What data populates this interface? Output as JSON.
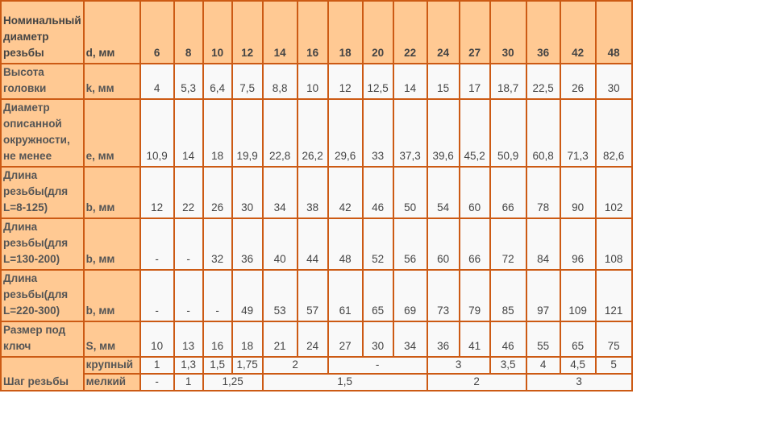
{
  "colors": {
    "header_bg": "#ffc993",
    "border": "#cc5a14",
    "cell_bg": "#f9f9f9"
  },
  "header": {
    "label": "Номинальный диаметр резьбы",
    "unit": "d, мм",
    "values": [
      "6",
      "8",
      "10",
      "12",
      "14",
      "16",
      "18",
      "20",
      "22",
      "24",
      "27",
      "30",
      "36",
      "42",
      "48"
    ]
  },
  "rows": [
    {
      "label": "Высота головки",
      "unit": "k, мм",
      "cells": [
        {
          "t": "4"
        },
        {
          "t": "5,3"
        },
        {
          "t": "6,4"
        },
        {
          "t": "7,5"
        },
        {
          "t": "8,8"
        },
        {
          "t": "10"
        },
        {
          "t": "12"
        },
        {
          "t": "12,5"
        },
        {
          "t": "14"
        },
        {
          "t": "15"
        },
        {
          "t": "17"
        },
        {
          "t": "18,7"
        },
        {
          "t": "22,5"
        },
        {
          "t": "26"
        },
        {
          "t": "30"
        }
      ]
    },
    {
      "label": "Диаметр описанной окружности, не менее",
      "unit": "e, мм",
      "cells": [
        {
          "t": "10,9"
        },
        {
          "t": "14"
        },
        {
          "t": "18"
        },
        {
          "t": "19,9"
        },
        {
          "t": "22,8"
        },
        {
          "t": "26,2"
        },
        {
          "t": "29,6"
        },
        {
          "t": "33"
        },
        {
          "t": "37,3"
        },
        {
          "t": "39,6"
        },
        {
          "t": "45,2"
        },
        {
          "t": "50,9"
        },
        {
          "t": "60,8"
        },
        {
          "t": "71,3"
        },
        {
          "t": "82,6"
        }
      ]
    },
    {
      "label": "Длина резьбы(для L=8-125)",
      "unit": "b, мм",
      "cells": [
        {
          "t": "12"
        },
        {
          "t": "22"
        },
        {
          "t": "26"
        },
        {
          "t": "30"
        },
        {
          "t": "34"
        },
        {
          "t": "38"
        },
        {
          "t": "42"
        },
        {
          "t": "46"
        },
        {
          "t": "50"
        },
        {
          "t": "54"
        },
        {
          "t": "60"
        },
        {
          "t": "66"
        },
        {
          "t": "78"
        },
        {
          "t": "90"
        },
        {
          "t": "102"
        }
      ]
    },
    {
      "label": "Длина резьбы(для L=130-200)",
      "unit": "b, мм",
      "cells": [
        {
          "t": "-"
        },
        {
          "t": "-"
        },
        {
          "t": "32"
        },
        {
          "t": "36"
        },
        {
          "t": "40"
        },
        {
          "t": "44"
        },
        {
          "t": "48"
        },
        {
          "t": "52"
        },
        {
          "t": "56"
        },
        {
          "t": "60"
        },
        {
          "t": "66"
        },
        {
          "t": "72"
        },
        {
          "t": "84"
        },
        {
          "t": "96"
        },
        {
          "t": "108"
        }
      ]
    },
    {
      "label": "Длина резьбы(для L=220-300)",
      "unit": "b, мм",
      "cells": [
        {
          "t": "-"
        },
        {
          "t": "-"
        },
        {
          "t": "-"
        },
        {
          "t": "49"
        },
        {
          "t": "53"
        },
        {
          "t": "57"
        },
        {
          "t": "61"
        },
        {
          "t": "65"
        },
        {
          "t": "69"
        },
        {
          "t": "73"
        },
        {
          "t": "79"
        },
        {
          "t": "85"
        },
        {
          "t": "97"
        },
        {
          "t": "109"
        },
        {
          "t": "121"
        }
      ]
    },
    {
      "label": "Размер под ключ",
      "unit": "S, мм",
      "cells": [
        {
          "t": "10"
        },
        {
          "t": "13"
        },
        {
          "t": "16"
        },
        {
          "t": "18"
        },
        {
          "t": "21"
        },
        {
          "t": "24"
        },
        {
          "t": "27"
        },
        {
          "t": "30"
        },
        {
          "t": "34"
        },
        {
          "t": "36"
        },
        {
          "t": "41"
        },
        {
          "t": "46"
        },
        {
          "t": "55"
        },
        {
          "t": "65"
        },
        {
          "t": "75"
        }
      ]
    }
  ],
  "pitch": {
    "label": "Шаг резьбы",
    "coarse": {
      "unit": "крупный",
      "cells": [
        {
          "t": "1",
          "s": 1
        },
        {
          "t": "1,3",
          "s": 1
        },
        {
          "t": "1,5",
          "s": 1
        },
        {
          "t": "1,75",
          "s": 1
        },
        {
          "t": "2",
          "s": 2
        },
        {
          "t": "-",
          "s": 3
        },
        {
          "t": "3",
          "s": 2
        },
        {
          "t": "3,5",
          "s": 1
        },
        {
          "t": "4",
          "s": 1
        },
        {
          "t": "4,5",
          "s": 1
        },
        {
          "t": "5",
          "s": 1
        }
      ]
    },
    "fine": {
      "unit": "мелкий",
      "cells": [
        {
          "t": "-",
          "s": 1
        },
        {
          "t": "1",
          "s": 1
        },
        {
          "t": "1,25",
          "s": 2
        },
        {
          "t": "1,5",
          "s": 5
        },
        {
          "t": "2",
          "s": 3
        },
        {
          "t": "3",
          "s": 3
        }
      ]
    }
  }
}
